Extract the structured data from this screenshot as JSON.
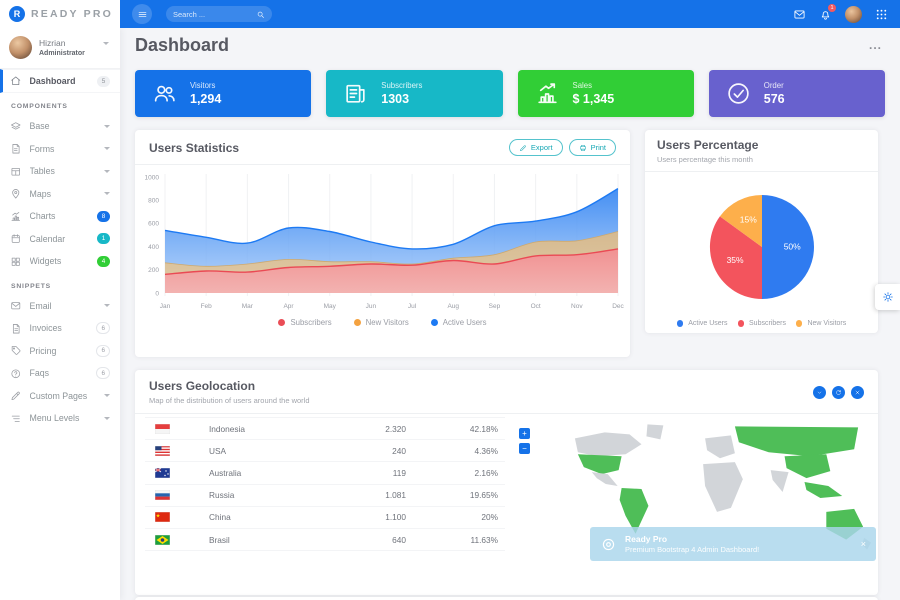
{
  "brand": {
    "logo_letter": "R",
    "name": "READY PRO"
  },
  "topbar": {
    "search_placeholder": "Search ...",
    "notification_count": "1"
  },
  "sidebar": {
    "user": {
      "name": "Hizrian",
      "role": "Administrator"
    },
    "dashboard": {
      "label": "Dashboard",
      "badge": "5"
    },
    "components_header": "COMPONENTS",
    "components": [
      {
        "label": "Base"
      },
      {
        "label": "Forms"
      },
      {
        "label": "Tables"
      },
      {
        "label": "Maps"
      },
      {
        "label": "Charts",
        "badge": "8",
        "badge_color": "#1572E8"
      },
      {
        "label": "Calendar",
        "badge": "1",
        "badge_color": "#17B8C7"
      },
      {
        "label": "Widgets",
        "badge": "4",
        "badge_color": "#31CE36"
      }
    ],
    "snippets_header": "SNIPPETS",
    "snippets": [
      {
        "label": "Email"
      },
      {
        "label": "Invoices",
        "badge": "6"
      },
      {
        "label": "Pricing",
        "badge": "6"
      },
      {
        "label": "Faqs",
        "badge": "6"
      },
      {
        "label": "Custom Pages"
      },
      {
        "label": "Menu Levels"
      }
    ]
  },
  "page": {
    "title": "Dashboard",
    "actions_menu": "..."
  },
  "stat_cards": [
    {
      "label": "Visitors",
      "value": "1,294",
      "color": "#1572E8",
      "icon": "users-icon"
    },
    {
      "label": "Subscribers",
      "value": "1303",
      "color": "#17B8C7",
      "icon": "newspaper-icon"
    },
    {
      "label": "Sales",
      "value": "$ 1,345",
      "color": "#31CE36",
      "icon": "chart-bars-icon"
    },
    {
      "label": "Order",
      "value": "576",
      "color": "#6861CE",
      "icon": "check-circle-icon"
    }
  ],
  "statistics_card": {
    "title": "Users Statistics",
    "export_label": "Export",
    "print_label": "Print"
  },
  "percentage_card": {
    "title": "Users Percentage",
    "subtitle": "Users percentage this month"
  },
  "geolocation_card": {
    "title": "Users Geolocation",
    "subtitle": "Map of the distribution of users around the world",
    "map_zoom_in": "+",
    "map_zoom_out": "−",
    "rows": [
      {
        "country": "Indonesia",
        "users": "2.320",
        "percent": "42.18%"
      },
      {
        "country": "USA",
        "users": "240",
        "percent": "4.36%"
      },
      {
        "country": "Australia",
        "users": "119",
        "percent": "2.16%"
      },
      {
        "country": "Russia",
        "users": "1.081",
        "percent": "19.65%"
      },
      {
        "country": "China",
        "users": "1.100",
        "percent": "20%"
      },
      {
        "country": "Brasil",
        "users": "640",
        "percent": "11.63%"
      }
    ],
    "map_highlighted": [
      "Indonesia",
      "USA",
      "Australia",
      "Russia",
      "China",
      "Brasil"
    ]
  },
  "map_toast": {
    "title": "Ready Pro",
    "subtitle": "Premium Bootstrap 4 Admin Dashboard!",
    "close": "×"
  },
  "colors": {
    "primary_blue": "#1572E8",
    "badge_red": "#F25961",
    "teal_accent": "#17B8C7",
    "land_default": "#d2d5d9",
    "land_active": "#4fbe58",
    "toast_bg": "rgba(170, 213, 236, 0.82)"
  },
  "chart_data": [
    {
      "type": "area",
      "title": "Users Statistics",
      "x": [
        "Jan",
        "Feb",
        "Mar",
        "Apr",
        "May",
        "Jun",
        "Jul",
        "Aug",
        "Sep",
        "Oct",
        "Nov",
        "Dec"
      ],
      "series": [
        {
          "name": "Subscribers",
          "color": "#ea4d56",
          "values": [
            160,
            190,
            180,
            220,
            230,
            250,
            240,
            280,
            250,
            320,
            330,
            380
          ]
        },
        {
          "name": "New Visitors",
          "color": "#f4a240",
          "values": [
            260,
            230,
            250,
            290,
            270,
            270,
            250,
            300,
            330,
            440,
            450,
            530
          ]
        },
        {
          "name": "Active Users",
          "color": "#1d7af3",
          "values": [
            540,
            480,
            430,
            560,
            530,
            440,
            380,
            420,
            580,
            620,
            700,
            900
          ]
        }
      ],
      "ylim": [
        0,
        1000
      ],
      "yticks": [
        0,
        200,
        400,
        600,
        800,
        1000
      ],
      "xlabel": "",
      "ylabel": "",
      "grid": "vertical",
      "legend_position": "bottom"
    },
    {
      "type": "pie",
      "title": "Users Percentage",
      "labels": [
        "Active Users",
        "Subscribers",
        "New Visitors"
      ],
      "values": [
        50,
        35,
        15
      ],
      "colors": [
        "#2f7bf0",
        "#f3545d",
        "#fdaf4b"
      ],
      "legend_position": "bottom"
    }
  ]
}
